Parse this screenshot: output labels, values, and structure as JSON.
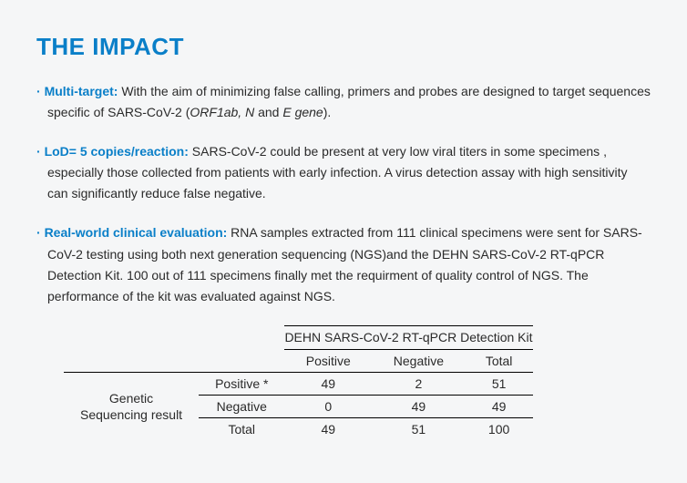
{
  "title": "THE IMPACT",
  "bullets": [
    {
      "lead": "Multi-target:",
      "text_before_italic": " With the aim of minimizing false calling, primers and probes are designed to target sequences specific of SARS-CoV-2 (",
      "italic": "ORF1ab, N",
      "text_mid": " and ",
      "italic2": "E gene",
      "text_after": ")."
    },
    {
      "lead": "LoD= 5 copies/reaction:",
      "text": " SARS-CoV-2 could be present at very low viral titers in some specimens , especially those collected from patients with early infection. A virus detection assay with high sensitivity can significantly reduce false negative."
    },
    {
      "lead": "Real-world clinical evaluation:",
      "text": " RNA samples extracted from 111 clinical specimens were sent for SARS-CoV-2 testing using both next generation sequencing (NGS)and the DEHN  SARS-CoV-2 RT-qPCR Detection Kit. 100 out of 111 specimens finally met the requirment of quality control of NGS. The performance of the kit was evaluated against NGS."
    }
  ],
  "table": {
    "kit_header": "DEHN  SARS-CoV-2 RT-qPCR Detection Kit",
    "columns": [
      "Positive",
      "Negative",
      "Total"
    ],
    "side_label_line1": "Genetic",
    "side_label_line2": "Sequencing result",
    "rows": [
      {
        "label": "Positive *",
        "cells": [
          "49",
          "2",
          "51"
        ]
      },
      {
        "label": "Negative",
        "cells": [
          "0",
          "49",
          "49"
        ]
      },
      {
        "label": "Total",
        "cells": [
          "49",
          "51",
          "100"
        ]
      }
    ]
  }
}
